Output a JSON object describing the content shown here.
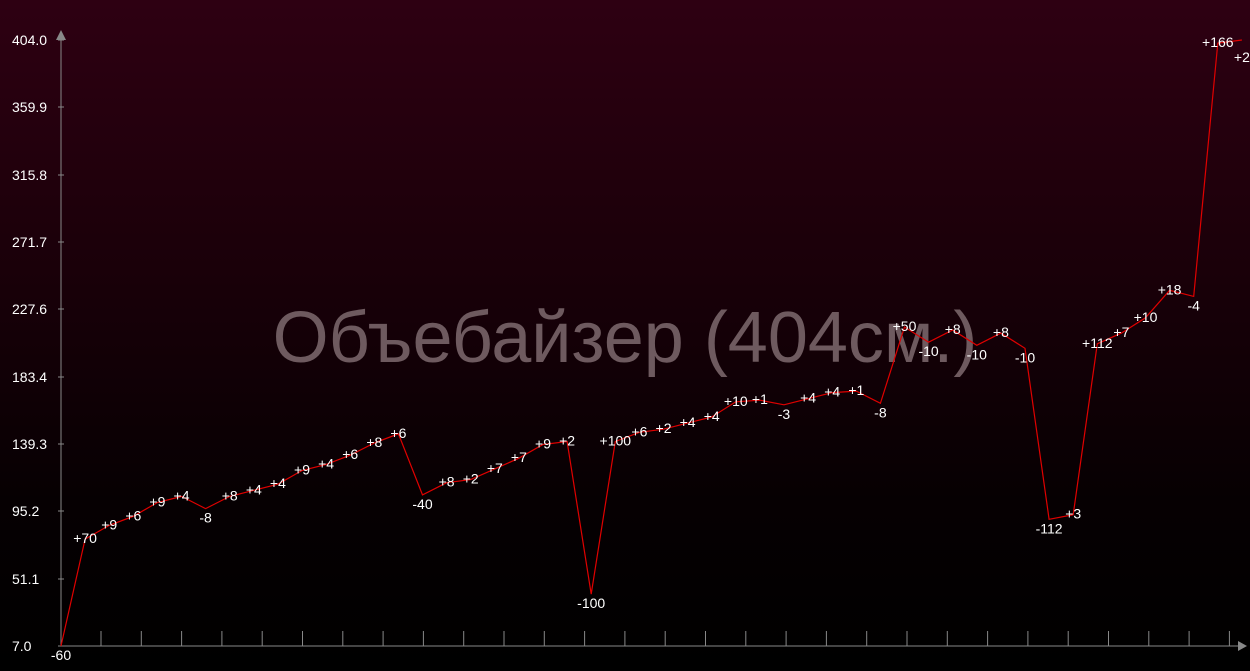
{
  "chart_data": {
    "type": "line",
    "watermark": "Объебайзер (404см.)",
    "ylim": [
      7.0,
      404.0
    ],
    "y_ticks": [
      "7.0",
      "51.1",
      "95.2",
      "139.3",
      "183.4",
      "227.6",
      "271.7",
      "315.8",
      "359.9",
      "404.0"
    ],
    "grid": false,
    "colors": {
      "line": "#e00000",
      "axis": "#888888",
      "text": "#ffffff"
    },
    "series": [
      {
        "values": [
          7,
          77,
          86,
          92,
          101,
          105,
          97,
          105,
          109,
          113,
          122,
          126,
          132,
          140,
          146,
          106,
          114,
          116,
          123,
          130,
          139,
          141,
          41,
          141,
          147,
          149,
          153,
          157,
          167,
          168,
          165,
          169,
          173,
          174,
          166,
          216,
          206,
          214,
          204,
          212,
          202,
          90,
          93,
          205,
          212,
          222,
          240,
          236,
          402,
          404
        ],
        "labels": [
          "-60",
          "+70",
          "+9",
          "+6",
          "+9",
          "+4",
          "-8",
          "+8",
          "+4",
          "+4",
          "+9",
          "+4",
          "+6",
          "+8",
          "+6",
          "-40",
          "+8",
          "+2",
          "+7",
          "+7",
          "+9",
          "+2",
          "-100",
          "+100",
          "+6",
          "+2",
          "+4",
          "+4",
          "+10",
          "+1",
          "-3",
          "+4",
          "+4",
          "+1",
          "-8",
          "+50",
          "-10",
          "+8",
          "-10",
          "+8",
          "-10",
          "-112",
          "+3",
          "+112",
          "+7",
          "+10",
          "+18",
          "-4",
          "+166",
          "+2"
        ]
      }
    ]
  }
}
